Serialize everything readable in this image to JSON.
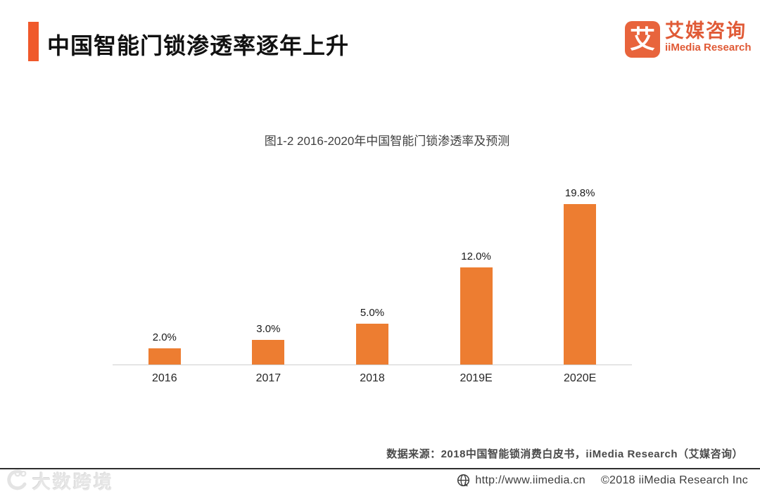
{
  "header": {
    "title": "中国智能门锁渗透率逐年上升",
    "accent_color": "#F0592B"
  },
  "logo": {
    "icon_char": "艾",
    "name_cn": "艾媒咨询",
    "name_en": "iiMedia Research",
    "brand_color": "#E05A36"
  },
  "chart_data": {
    "type": "bar",
    "title": "图1-2 2016-2020年中国智能门锁渗透率及预测",
    "categories": [
      "2016",
      "2017",
      "2018",
      "2019E",
      "2020E"
    ],
    "values": [
      2.0,
      3.0,
      5.0,
      12.0,
      19.8
    ],
    "data_labels": [
      "2.0%",
      "3.0%",
      "5.0%",
      "12.0%",
      "19.8%"
    ],
    "bar_color": "#ED7D31",
    "ylabel": "",
    "xlabel": "",
    "ylim": [
      0,
      22
    ],
    "grid": false,
    "legend": false,
    "baseline_color": "#cfcfcf"
  },
  "source_note": "数据来源：2018中国智能锁消费白皮书，iiMedia Research（艾媒咨询）",
  "footer": {
    "watermark": "大数跨境",
    "url": "http://www.iimedia.cn",
    "copyright": "©2018  iiMedia Research Inc"
  }
}
